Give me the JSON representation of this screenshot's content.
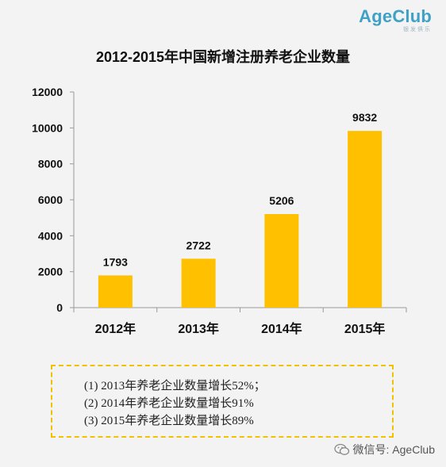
{
  "brand": {
    "logo": "AgeClub",
    "logo_sub": "银发俱乐"
  },
  "chart_data": {
    "type": "bar",
    "title": "2012-2015年中国新增注册养老企业数量",
    "categories": [
      "2012年",
      "2013年",
      "2014年",
      "2015年"
    ],
    "values": [
      1793,
      2722,
      5206,
      9832
    ],
    "data_labels": [
      "1793",
      "2722",
      "5206",
      "9832"
    ],
    "yticks": [
      "0",
      "2000",
      "4000",
      "6000",
      "8000",
      "10000",
      "12000"
    ],
    "ylim": [
      0,
      12000
    ],
    "grid": false,
    "bar_color": "#ffc000"
  },
  "notes": [
    "(1)  2013年养老企业数量增长52%；",
    "(2)  2014年养老企业数量增长91%",
    "(3)  2015年养老企业数量增长89%"
  ],
  "footer": {
    "wechat": "微信号: AgeClub"
  }
}
